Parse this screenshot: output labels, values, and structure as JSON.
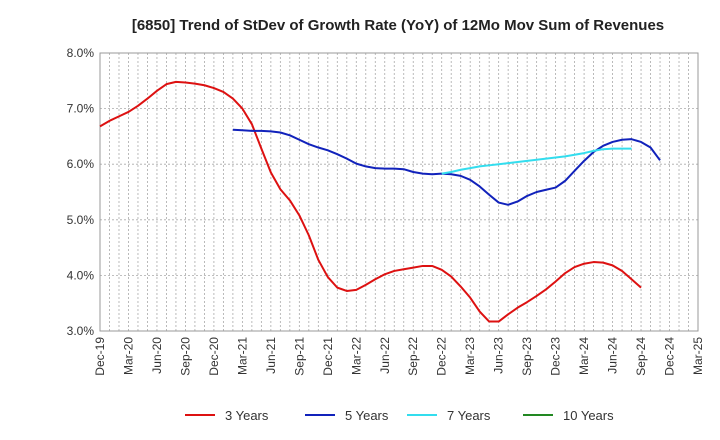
{
  "chart_data": {
    "type": "line",
    "title": "[6850]  Trend of StDev of Growth Rate (YoY) of 12Mo Mov Sum of Revenues",
    "xlabel": "",
    "ylabel": "",
    "ylim": [
      3.0,
      8.0
    ],
    "y_ticks": [
      "3.0%",
      "4.0%",
      "5.0%",
      "6.0%",
      "7.0%",
      "8.0%"
    ],
    "x_ticks": [
      "Dec-19",
      "Mar-20",
      "Jun-20",
      "Sep-20",
      "Dec-20",
      "Mar-21",
      "Jun-21",
      "Sep-21",
      "Dec-21",
      "Mar-22",
      "Jun-22",
      "Sep-22",
      "Dec-22",
      "Mar-23",
      "Jun-23",
      "Sep-23",
      "Dec-23",
      "Mar-24",
      "Jun-24",
      "Sep-24",
      "Dec-24",
      "Mar-25"
    ],
    "grid": true,
    "legend_position": "bottom",
    "series": [
      {
        "name": "3 Years",
        "color": "#dd1111",
        "start_index": 0,
        "values": [
          6.68,
          6.78,
          6.86,
          6.94,
          7.05,
          7.18,
          7.32,
          7.44,
          7.48,
          7.47,
          7.45,
          7.42,
          7.37,
          7.3,
          7.18,
          7.0,
          6.72,
          6.28,
          5.85,
          5.55,
          5.35,
          5.08,
          4.72,
          4.28,
          3.97,
          3.78,
          3.72,
          3.74,
          3.83,
          3.93,
          4.02,
          4.08,
          4.11,
          4.14,
          4.17,
          4.17,
          4.1,
          3.98,
          3.8,
          3.6,
          3.35,
          3.17,
          3.17,
          3.3,
          3.42,
          3.52,
          3.63,
          3.75,
          3.89,
          4.04,
          4.15,
          4.21,
          4.24,
          4.23,
          4.18,
          4.08,
          3.93,
          3.78
        ]
      },
      {
        "name": "5 Years",
        "color": "#1122bb",
        "start_index": 14,
        "values": [
          6.62,
          6.61,
          6.6,
          6.6,
          6.59,
          6.57,
          6.52,
          6.44,
          6.36,
          6.3,
          6.25,
          6.18,
          6.1,
          6.01,
          5.96,
          5.93,
          5.92,
          5.92,
          5.91,
          5.86,
          5.83,
          5.82,
          5.83,
          5.82,
          5.79,
          5.72,
          5.6,
          5.45,
          5.31,
          5.27,
          5.33,
          5.43,
          5.5,
          5.54,
          5.58,
          5.7,
          5.88,
          6.06,
          6.22,
          6.33,
          6.4,
          6.44,
          6.45,
          6.4,
          6.3,
          6.07
        ]
      },
      {
        "name": "7 Years",
        "color": "#33ddee",
        "start_index": 36,
        "values": [
          5.83,
          5.86,
          5.9,
          5.93,
          5.96,
          5.98,
          6.0,
          6.02,
          6.04,
          6.06,
          6.08,
          6.1,
          6.12,
          6.14,
          6.17,
          6.2,
          6.24,
          6.27,
          6.28,
          6.28,
          6.28
        ]
      },
      {
        "name": "10 Years",
        "color": "#228822",
        "start_index": 0,
        "values": []
      }
    ]
  }
}
